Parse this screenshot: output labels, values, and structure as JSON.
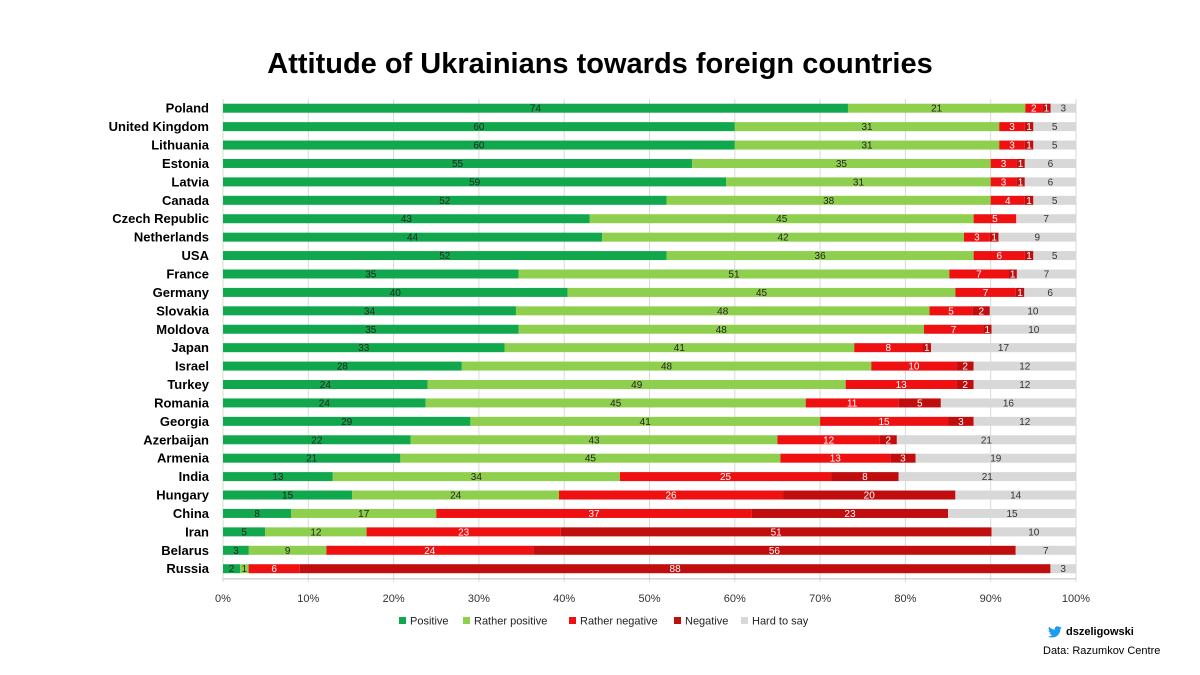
{
  "title": "Attitude of Ukrainians towards foreign countries",
  "credit": {
    "handle": "dszeligowski",
    "icon": "twitter-bird-icon"
  },
  "source": "Data: Razumkov Centre",
  "chart_data": {
    "type": "bar",
    "orientation": "horizontal",
    "stacked": true,
    "percent_stacked": true,
    "categories": [
      "Poland",
      "United Kingdom",
      "Lithuania",
      "Estonia",
      "Latvia",
      "Canada",
      "Czech Republic",
      "Netherlands",
      "USA",
      "France",
      "Germany",
      "Slovakia",
      "Moldova",
      "Japan",
      "Israel",
      "Turkey",
      "Romania",
      "Georgia",
      "Azerbaijan",
      "Armenia",
      "India",
      "Hungary",
      "China",
      "Iran",
      "Belarus",
      "Russia"
    ],
    "series": [
      {
        "name": "Positive",
        "color": "#11a84d",
        "label_color": "#222222",
        "values": [
          74,
          60,
          60,
          55,
          59,
          52,
          43,
          44,
          52,
          35,
          40,
          34,
          35,
          33,
          28,
          24,
          24,
          29,
          22,
          21,
          13,
          15,
          8,
          5,
          3,
          2
        ]
      },
      {
        "name": "Rather positive",
        "color": "#8fcf4e",
        "label_color": "#222222",
        "values": [
          21,
          31,
          31,
          35,
          31,
          38,
          45,
          42,
          36,
          51,
          45,
          48,
          48,
          41,
          48,
          49,
          45,
          41,
          43,
          45,
          34,
          24,
          17,
          12,
          9,
          1
        ]
      },
      {
        "name": "Rather negative",
        "color": "#ef1111",
        "label_color": "#ffffff",
        "values": [
          2,
          3,
          3,
          3,
          3,
          4,
          5,
          3,
          6,
          7,
          7,
          5,
          7,
          8,
          10,
          13,
          11,
          15,
          12,
          13,
          25,
          26,
          37,
          23,
          24,
          6
        ]
      },
      {
        "name": "Negative",
        "color": "#c00d0d",
        "label_color": "#ffffff",
        "values": [
          1,
          1,
          1,
          1,
          1,
          1,
          0,
          1,
          1,
          1,
          1,
          2,
          1,
          1,
          2,
          2,
          5,
          3,
          2,
          3,
          8,
          20,
          23,
          51,
          56,
          88
        ]
      },
      {
        "name": "Hard to say",
        "color": "#d8d8d8",
        "label_color": "#333333",
        "values": [
          3,
          5,
          5,
          6,
          6,
          5,
          7,
          9,
          5,
          7,
          6,
          10,
          10,
          17,
          12,
          12,
          16,
          12,
          21,
          19,
          21,
          14,
          15,
          10,
          7,
          3
        ]
      }
    ],
    "xlim": [
      0,
      100
    ],
    "x_ticks": [
      "0%",
      "10%",
      "20%",
      "30%",
      "40%",
      "50%",
      "60%",
      "70%",
      "80%",
      "90%",
      "100%"
    ],
    "grid": true,
    "legend_position": "bottom"
  }
}
